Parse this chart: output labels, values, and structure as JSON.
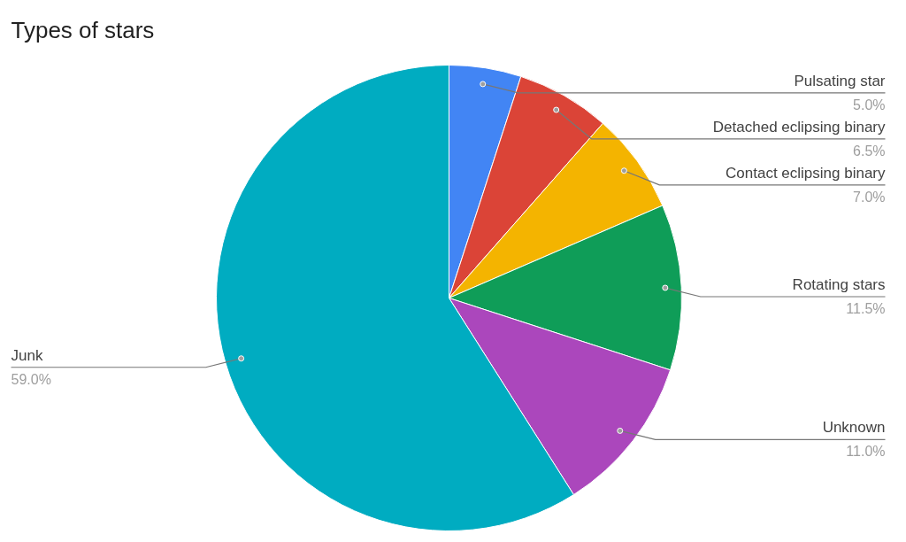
{
  "chart_data": {
    "type": "pie",
    "title": "Types of stars",
    "categories": [
      "Pulsating star",
      "Detached eclipsing binary",
      "Contact eclipsing binary",
      "Rotating stars",
      "Unknown",
      "Junk"
    ],
    "values": [
      5.0,
      6.5,
      7.0,
      11.5,
      11.0,
      59.0
    ],
    "colors": [
      "#4285f4",
      "#db4437",
      "#f4b400",
      "#0f9d58",
      "#ab47bc",
      "#00acc1"
    ],
    "value_labels": [
      "5.0%",
      "6.5%",
      "7.0%",
      "11.5%",
      "11.0%",
      "59.0%"
    ]
  }
}
